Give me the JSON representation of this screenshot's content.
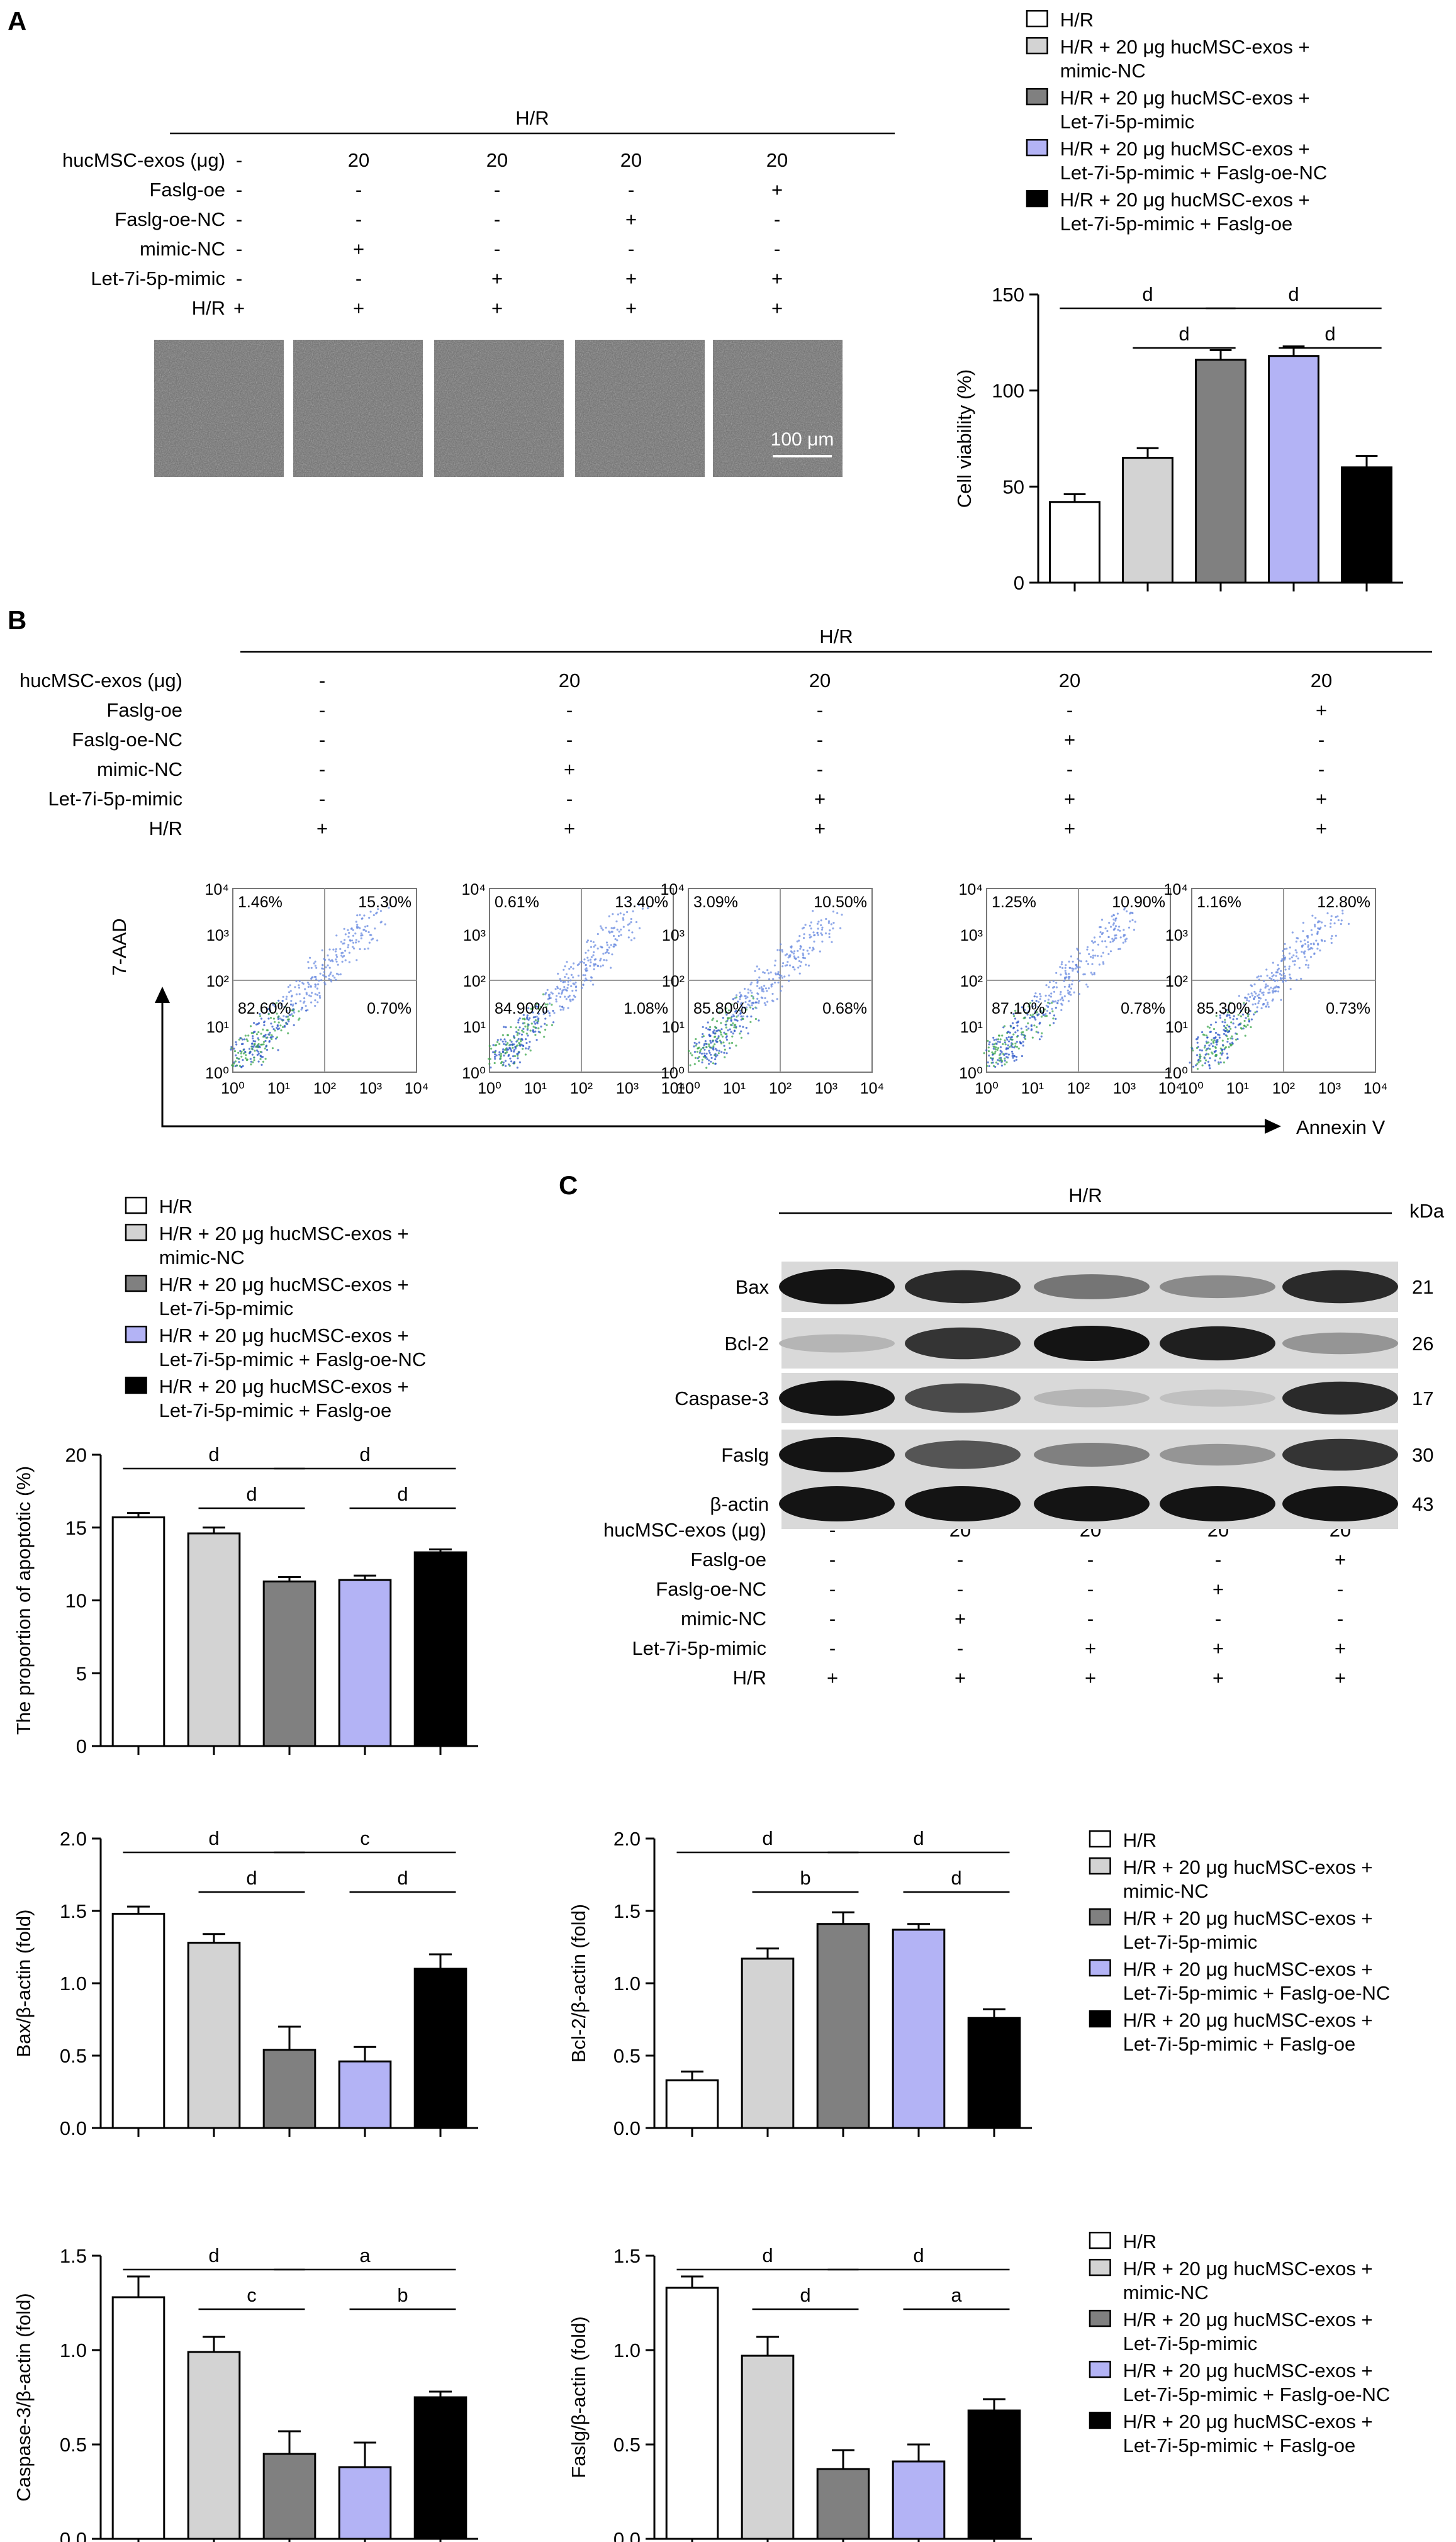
{
  "panels": {
    "A": "A",
    "B": "B",
    "C": "C"
  },
  "groups": [
    {
      "label": "H/R",
      "color": "#ffffff"
    },
    {
      "label": "H/R + 20 μg hucMSC-exos + mimic-NC",
      "color": "#d3d3d3"
    },
    {
      "label": "H/R + 20 μg hucMSC-exos + Let-7i-5p-mimic",
      "color": "#808080"
    },
    {
      "label": "H/R + 20 μg hucMSC-exos + Let-7i-5p-mimic + Faslg-oe-NC",
      "color": "#b3b3f5"
    },
    {
      "label": "H/R + 20 μg hucMSC-exos + Let-7i-5p-mimic + Faslg-oe",
      "color": "#000000"
    }
  ],
  "legend_lines": [
    [
      "H/R"
    ],
    [
      "H/R + 20 μg hucMSC-exos +",
      "mimic-NC"
    ],
    [
      "H/R + 20 μg hucMSC-exos +",
      "Let-7i-5p-mimic"
    ],
    [
      "H/R + 20 μg hucMSC-exos +",
      "Let-7i-5p-mimic + Faslg-oe-NC"
    ],
    [
      "H/R + 20 μg hucMSC-exos +",
      "Let-7i-5p-mimic + Faslg-oe"
    ]
  ],
  "treatment_table": {
    "header": "H/R",
    "rows": [
      {
        "label": "hucMSC-exos (μg)",
        "values": [
          "-",
          "20",
          "20",
          "20",
          "20"
        ]
      },
      {
        "label": "Faslg-oe",
        "values": [
          "-",
          "-",
          "-",
          "-",
          "+"
        ]
      },
      {
        "label": "Faslg-oe-NC",
        "values": [
          "-",
          "-",
          "-",
          "+",
          "-"
        ]
      },
      {
        "label": "mimic-NC",
        "values": [
          "-",
          "+",
          "-",
          "-",
          "-"
        ]
      },
      {
        "label": "Let-7i-5p-mimic",
        "values": [
          "-",
          "-",
          "+",
          "+",
          "+"
        ]
      },
      {
        "label": "H/R",
        "values": [
          "+",
          "+",
          "+",
          "+",
          "+"
        ]
      }
    ]
  },
  "scale_bar": "100 μm",
  "flow": {
    "x_label": "Annexin V",
    "y_label": "7-AAD",
    "tick_labels": [
      "10⁰",
      "10¹",
      "10²",
      "10³",
      "10⁴"
    ],
    "plots": [
      {
        "ul": "1.46%",
        "ur": "15.30%",
        "ll": "82.60%",
        "lr": "0.70%"
      },
      {
        "ul": "0.61%",
        "ur": "13.40%",
        "ll": "84.90%",
        "lr": "1.08%"
      },
      {
        "ul": "3.09%",
        "ur": "10.50%",
        "ll": "85.80%",
        "lr": "0.68%"
      },
      {
        "ul": "1.25%",
        "ur": "10.90%",
        "ll": "87.10%",
        "lr": "0.78%"
      },
      {
        "ul": "1.16%",
        "ur": "12.80%",
        "ll": "85.30%",
        "lr": "0.73%"
      }
    ]
  },
  "western": {
    "header": "H/R",
    "kda_label": "kDa",
    "bands": [
      {
        "name": "Bax",
        "kda": "21",
        "intensity": [
          1.0,
          0.9,
          0.55,
          0.45,
          0.9
        ]
      },
      {
        "name": "Bcl-2",
        "kda": "26",
        "intensity": [
          0.25,
          0.85,
          1.0,
          0.95,
          0.4
        ]
      },
      {
        "name": "Caspase-3",
        "kda": "17",
        "intensity": [
          1.0,
          0.75,
          0.25,
          0.2,
          0.9
        ]
      },
      {
        "name": "Faslg",
        "kda": "30",
        "intensity": [
          1.0,
          0.7,
          0.5,
          0.4,
          0.85
        ]
      },
      {
        "name": "β-actin",
        "kda": "43",
        "intensity": [
          1.0,
          1.0,
          1.0,
          1.0,
          1.0
        ]
      }
    ]
  },
  "chart_data": [
    {
      "type": "bar",
      "id": "cell-viability",
      "ylabel": "Cell viability (%)",
      "ylim": [
        0,
        150
      ],
      "yticks": [
        0,
        50,
        100,
        150
      ],
      "values": [
        42,
        65,
        116,
        118,
        60
      ],
      "errors": [
        4,
        5,
        5,
        5,
        6
      ],
      "significance": [
        {
          "from": 0,
          "to": 2,
          "label": "d",
          "level": 2
        },
        {
          "from": 1,
          "to": 2,
          "label": "d",
          "level": 1
        },
        {
          "from": 2,
          "to": 4,
          "label": "d",
          "level": 2
        },
        {
          "from": 3,
          "to": 4,
          "label": "d",
          "level": 1
        }
      ]
    },
    {
      "type": "bar",
      "id": "apoptosis",
      "ylabel": "The proportion of apoptotic (%)",
      "ylim": [
        0,
        20
      ],
      "yticks": [
        0,
        5,
        10,
        15,
        20
      ],
      "values": [
        15.7,
        14.6,
        11.3,
        11.4,
        13.3
      ],
      "errors": [
        0.3,
        0.4,
        0.3,
        0.3,
        0.2
      ],
      "significance": [
        {
          "from": 0,
          "to": 2,
          "label": "d",
          "level": 2
        },
        {
          "from": 1,
          "to": 2,
          "label": "d",
          "level": 1
        },
        {
          "from": 2,
          "to": 4,
          "label": "d",
          "level": 2
        },
        {
          "from": 3,
          "to": 4,
          "label": "d",
          "level": 1
        }
      ]
    },
    {
      "type": "bar",
      "id": "bax",
      "ylabel": "Bax/β-actin (fold)",
      "ylim": [
        0,
        2.0
      ],
      "yticks": [
        0.0,
        0.5,
        1.0,
        1.5,
        2.0
      ],
      "values": [
        1.48,
        1.28,
        0.54,
        0.46,
        1.1
      ],
      "errors": [
        0.05,
        0.06,
        0.16,
        0.1,
        0.1
      ],
      "significance": [
        {
          "from": 0,
          "to": 2,
          "label": "d",
          "level": 2
        },
        {
          "from": 1,
          "to": 2,
          "label": "d",
          "level": 1
        },
        {
          "from": 2,
          "to": 4,
          "label": "c",
          "level": 2
        },
        {
          "from": 3,
          "to": 4,
          "label": "d",
          "level": 1
        }
      ]
    },
    {
      "type": "bar",
      "id": "bcl2",
      "ylabel": "Bcl-2/β-actin (fold)",
      "ylim": [
        0,
        2.0
      ],
      "yticks": [
        0.0,
        0.5,
        1.0,
        1.5,
        2.0
      ],
      "values": [
        0.33,
        1.17,
        1.41,
        1.37,
        0.76
      ],
      "errors": [
        0.06,
        0.07,
        0.08,
        0.04,
        0.06
      ],
      "significance": [
        {
          "from": 0,
          "to": 2,
          "label": "d",
          "level": 2
        },
        {
          "from": 1,
          "to": 2,
          "label": "b",
          "level": 1
        },
        {
          "from": 2,
          "to": 4,
          "label": "d",
          "level": 2
        },
        {
          "from": 3,
          "to": 4,
          "label": "d",
          "level": 1
        }
      ]
    },
    {
      "type": "bar",
      "id": "caspase3",
      "ylabel": "Caspase-3/β-actin (fold)",
      "ylim": [
        0,
        1.5
      ],
      "yticks": [
        0.0,
        0.5,
        1.0,
        1.5
      ],
      "values": [
        1.28,
        0.99,
        0.45,
        0.38,
        0.75
      ],
      "errors": [
        0.11,
        0.08,
        0.12,
        0.13,
        0.03
      ],
      "significance": [
        {
          "from": 0,
          "to": 2,
          "label": "d",
          "level": 2
        },
        {
          "from": 1,
          "to": 2,
          "label": "c",
          "level": 1
        },
        {
          "from": 2,
          "to": 4,
          "label": "a",
          "level": 2
        },
        {
          "from": 3,
          "to": 4,
          "label": "b",
          "level": 1
        }
      ]
    },
    {
      "type": "bar",
      "id": "faslg",
      "ylabel": "Faslg/β-actin (fold)",
      "ylim": [
        0,
        1.5
      ],
      "yticks": [
        0.0,
        0.5,
        1.0,
        1.5
      ],
      "values": [
        1.33,
        0.97,
        0.37,
        0.41,
        0.68
      ],
      "errors": [
        0.06,
        0.1,
        0.1,
        0.09,
        0.06
      ],
      "significance": [
        {
          "from": 0,
          "to": 2,
          "label": "d",
          "level": 2
        },
        {
          "from": 1,
          "to": 2,
          "label": "d",
          "level": 1
        },
        {
          "from": 2,
          "to": 4,
          "label": "d",
          "level": 2
        },
        {
          "from": 3,
          "to": 4,
          "label": "a",
          "level": 1
        }
      ]
    }
  ]
}
